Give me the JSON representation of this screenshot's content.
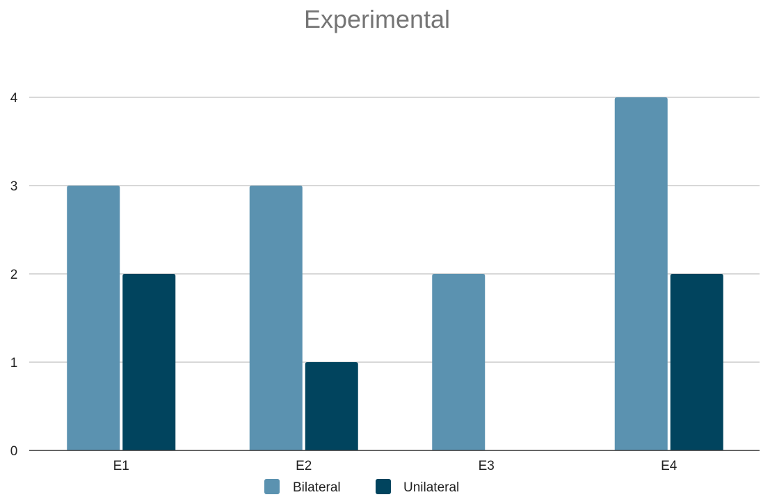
{
  "chart_data": {
    "type": "bar",
    "title": "Experimental",
    "xlabel": "",
    "ylabel": "",
    "categories": [
      "E1",
      "E2",
      "E3",
      "E4"
    ],
    "series": [
      {
        "name": "Bilateral",
        "values": [
          3,
          3,
          2,
          4
        ],
        "color": "#5b92b0"
      },
      {
        "name": "Unilateral",
        "values": [
          2,
          1,
          0,
          2
        ],
        "color": "#01445e"
      }
    ],
    "ylim": [
      0,
      4
    ],
    "yticks": [
      0,
      1,
      2,
      3,
      4
    ],
    "grid": true,
    "legend": "bottom"
  }
}
